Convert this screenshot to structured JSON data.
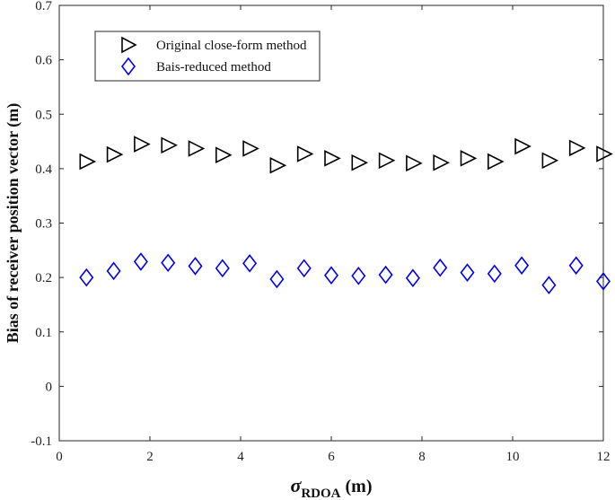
{
  "chart_data": {
    "type": "scatter",
    "x": [
      0.6,
      1.2,
      1.8,
      2.4,
      3.0,
      3.6,
      4.2,
      4.8,
      5.4,
      6.0,
      6.6,
      7.2,
      7.8,
      8.4,
      9.0,
      9.6,
      10.2,
      10.8,
      11.4,
      12.0
    ],
    "series": [
      {
        "name": "Original close-form method",
        "marker": "triangle-right",
        "color": "#000000",
        "values": [
          0.413,
          0.426,
          0.445,
          0.443,
          0.437,
          0.425,
          0.437,
          0.406,
          0.427,
          0.419,
          0.411,
          0.415,
          0.41,
          0.411,
          0.419,
          0.413,
          0.441,
          0.415,
          0.438,
          0.427
        ]
      },
      {
        "name": "Bais-reduced method",
        "marker": "diamond",
        "color": "#0000ee",
        "values": [
          0.2,
          0.212,
          0.229,
          0.227,
          0.221,
          0.217,
          0.226,
          0.197,
          0.217,
          0.204,
          0.203,
          0.205,
          0.199,
          0.218,
          0.209,
          0.207,
          0.222,
          0.186,
          0.222,
          0.193
        ]
      }
    ],
    "xlabel_symbol": "σ",
    "xlabel_sub": "RDOA",
    "xlabel_unit": " (m)",
    "ylabel": "Bias of receiver position vector (m)",
    "xlim": [
      0,
      12
    ],
    "ylim": [
      -0.1,
      0.7
    ],
    "xticks": [
      0,
      2,
      4,
      6,
      8,
      10,
      12
    ],
    "yticks": [
      -0.1,
      0,
      0.1,
      0.2,
      0.3,
      0.4,
      0.5,
      0.6,
      0.7
    ],
    "xtick_labels": [
      "0",
      "2",
      "4",
      "6",
      "8",
      "10",
      "12"
    ],
    "ytick_labels": [
      "-0.1",
      "0",
      "0.1",
      "0.2",
      "0.3",
      "0.4",
      "0.5",
      "0.6",
      "0.7"
    ],
    "grid": false,
    "legend": "top-left"
  }
}
